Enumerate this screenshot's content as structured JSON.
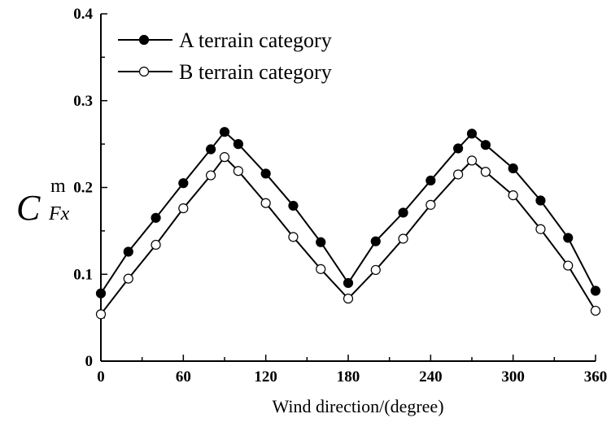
{
  "chart_data": {
    "type": "line",
    "xlabel": "Wind direction/(degree)",
    "ylabel": {
      "main": "C",
      "superscript": "m",
      "subscript": "Fx"
    },
    "xlim": [
      0,
      360
    ],
    "ylim": [
      0,
      0.4
    ],
    "xticks": [
      "0",
      "60",
      "120",
      "180",
      "240",
      "300",
      "360"
    ],
    "yticks": [
      "0",
      "0.1",
      "0.2",
      "0.3",
      "0.4"
    ],
    "x": [
      0,
      20,
      40,
      60,
      80,
      90,
      100,
      120,
      140,
      160,
      180,
      200,
      220,
      240,
      260,
      270,
      280,
      300,
      320,
      340,
      360
    ],
    "series": [
      {
        "name": "A terrain category",
        "marker": "filled-circle",
        "values": [
          0.078,
          0.126,
          0.165,
          0.205,
          0.244,
          0.264,
          0.25,
          0.216,
          0.179,
          0.137,
          0.09,
          0.138,
          0.171,
          0.208,
          0.245,
          0.262,
          0.249,
          0.222,
          0.185,
          0.142,
          0.081
        ]
      },
      {
        "name": "B terrain category",
        "marker": "open-circle",
        "values": [
          0.054,
          0.095,
          0.134,
          0.176,
          0.214,
          0.235,
          0.219,
          0.182,
          0.143,
          0.106,
          0.072,
          0.105,
          0.141,
          0.18,
          0.215,
          0.231,
          0.218,
          0.191,
          0.152,
          0.11,
          0.058
        ]
      }
    ],
    "legend": {
      "position": "top-left"
    },
    "grid": false
  }
}
